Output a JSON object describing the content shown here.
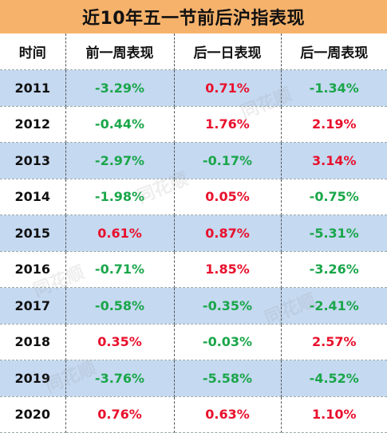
{
  "title": "近10年五一节前后沪指表现",
  "headers": [
    "时间",
    "前一周表现",
    "后一日表现",
    "后一周表现"
  ],
  "rows": [
    {
      "year": "2011",
      "before_week": "-3.29%",
      "after_day": "0.71%",
      "after_week": "-1.34%"
    },
    {
      "year": "2012",
      "before_week": "-0.44%",
      "after_day": "1.76%",
      "after_week": "2.19%"
    },
    {
      "year": "2013",
      "before_week": "-2.97%",
      "after_day": "-0.17%",
      "after_week": "3.14%"
    },
    {
      "year": "2014",
      "before_week": "-1.98%",
      "after_day": "0.05%",
      "after_week": "-0.75%"
    },
    {
      "year": "2015",
      "before_week": "0.61%",
      "after_day": "0.87%",
      "after_week": "-5.31%"
    },
    {
      "year": "2016",
      "before_week": "-0.71%",
      "after_day": "1.85%",
      "after_week": "-3.26%"
    },
    {
      "year": "2017",
      "before_week": "-0.58%",
      "after_day": "-0.35%",
      "after_week": "-2.41%"
    },
    {
      "year": "2018",
      "before_week": "0.35%",
      "after_day": "-0.03%",
      "after_week": "2.57%"
    },
    {
      "year": "2019",
      "before_week": "-3.76%",
      "after_day": "-5.58%",
      "after_week": "-4.52%"
    },
    {
      "year": "2020",
      "before_week": "0.76%",
      "after_day": "0.63%",
      "after_week": "1.10%"
    }
  ],
  "watermark": "同花顺",
  "colors": {
    "title_bg": "#f6b26b",
    "row_shade": "#c5d9f1",
    "positive": "#e8112d",
    "negative": "#1aa64a"
  }
}
